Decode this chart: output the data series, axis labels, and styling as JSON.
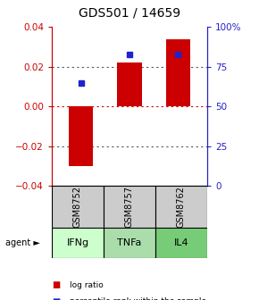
{
  "title": "GDS501 / 14659",
  "samples": [
    "GSM8752",
    "GSM8757",
    "GSM8762"
  ],
  "agents": [
    "IFNg",
    "TNFa",
    "IL4"
  ],
  "log_ratios": [
    -0.03,
    0.022,
    0.034
  ],
  "percentile_ranks": [
    65,
    83,
    83
  ],
  "ylim_left": [
    -0.04,
    0.04
  ],
  "ylim_right": [
    0,
    100
  ],
  "yticks_left": [
    -0.04,
    -0.02,
    0,
    0.02,
    0.04
  ],
  "yticks_right": [
    0,
    25,
    50,
    75,
    100
  ],
  "yticklabels_right": [
    "0",
    "25",
    "50",
    "75",
    "100%"
  ],
  "bar_color": "#cc0000",
  "dot_color": "#2222cc",
  "zero_line_color": "#cc0000",
  "dotted_line_color": "#555555",
  "sample_bg": "#cccccc",
  "agent_colors": [
    "#ccffcc",
    "#aaddaa",
    "#77cc77"
  ],
  "axis_left_color": "#cc0000",
  "axis_right_color": "#2222cc",
  "legend_log_ratio_color": "#cc0000",
  "legend_percentile_color": "#2222cc",
  "bar_width": 0.5,
  "title_fontsize": 10,
  "tick_fontsize": 7.5,
  "table_fontsize": 7,
  "agent_fontsize": 8,
  "legend_fontsize": 6.5
}
